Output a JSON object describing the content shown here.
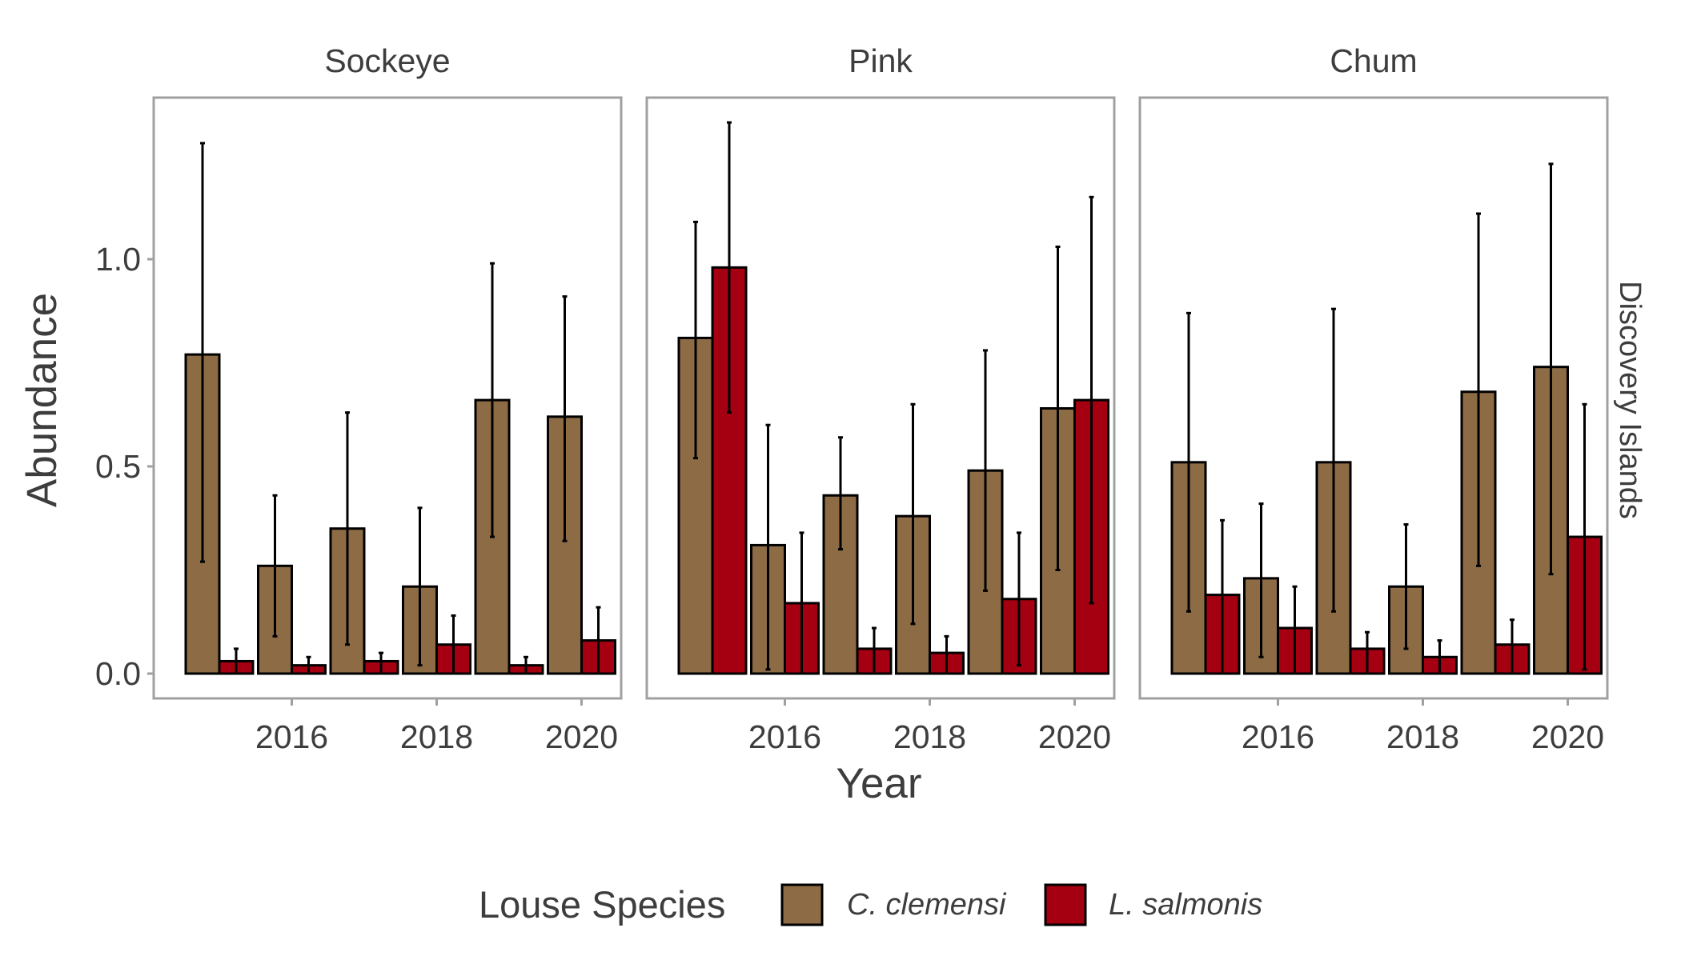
{
  "chart_data": {
    "type": "bar",
    "xlabel": "Year",
    "ylabel": "Abundance",
    "row_strip": "Discovery Islands",
    "ylim": [
      -0.05,
      1.4
    ],
    "y_ticks": [
      0.0,
      0.5,
      1.0
    ],
    "y_tick_labels": [
      "0.0",
      "0.5",
      "1.0"
    ],
    "x_years": [
      2015,
      2016,
      2017,
      2018,
      2019,
      2020
    ],
    "x_ticks": [
      2016,
      2018,
      2020
    ],
    "x_tick_labels": [
      "2016",
      "2018",
      "2020"
    ],
    "legend": {
      "title": "Louse Species",
      "position": "bottom",
      "entries": [
        "C. clemensi",
        "L. salmonis"
      ]
    },
    "colors": {
      "C. clemensi": "#8c6b45",
      "L. salmonis": "#a50011"
    },
    "facets": [
      {
        "name": "Sockeye",
        "series": [
          {
            "name": "C. clemensi",
            "values": [
              0.77,
              0.26,
              0.35,
              0.21,
              0.66,
              0.62
            ],
            "lower": [
              0.27,
              0.09,
              0.07,
              0.02,
              0.33,
              0.32
            ],
            "upper": [
              1.28,
              0.43,
              0.63,
              0.4,
              0.99,
              0.91
            ]
          },
          {
            "name": "L. salmonis",
            "values": [
              0.03,
              0.02,
              0.03,
              0.07,
              0.02,
              0.08
            ],
            "lower": [
              0.0,
              0.0,
              0.0,
              0.0,
              0.0,
              0.0
            ],
            "upper": [
              0.06,
              0.04,
              0.05,
              0.14,
              0.04,
              0.16
            ]
          }
        ]
      },
      {
        "name": "Pink",
        "series": [
          {
            "name": "C. clemensi",
            "values": [
              0.81,
              0.31,
              0.43,
              0.38,
              0.49,
              0.64
            ],
            "lower": [
              0.52,
              0.01,
              0.3,
              0.12,
              0.2,
              0.25
            ],
            "upper": [
              1.09,
              0.6,
              0.57,
              0.65,
              0.78,
              1.03
            ]
          },
          {
            "name": "L. salmonis",
            "values": [
              0.98,
              0.17,
              0.06,
              0.05,
              0.18,
              0.66
            ],
            "lower": [
              0.63,
              0.0,
              0.0,
              0.0,
              0.02,
              0.17
            ],
            "upper": [
              1.33,
              0.34,
              0.11,
              0.09,
              0.34,
              1.15
            ]
          }
        ]
      },
      {
        "name": "Chum",
        "series": [
          {
            "name": "C. clemensi",
            "values": [
              0.51,
              0.23,
              0.51,
              0.21,
              0.68,
              0.74
            ],
            "lower": [
              0.15,
              0.04,
              0.15,
              0.06,
              0.26,
              0.24
            ],
            "upper": [
              0.87,
              0.41,
              0.88,
              0.36,
              1.11,
              1.23
            ]
          },
          {
            "name": "L. salmonis",
            "values": [
              0.19,
              0.11,
              0.06,
              0.04,
              0.07,
              0.33
            ],
            "lower": [
              0.0,
              0.0,
              0.0,
              0.0,
              0.0,
              0.01
            ],
            "upper": [
              0.37,
              0.21,
              0.1,
              0.08,
              0.13,
              0.65
            ]
          }
        ]
      }
    ]
  }
}
